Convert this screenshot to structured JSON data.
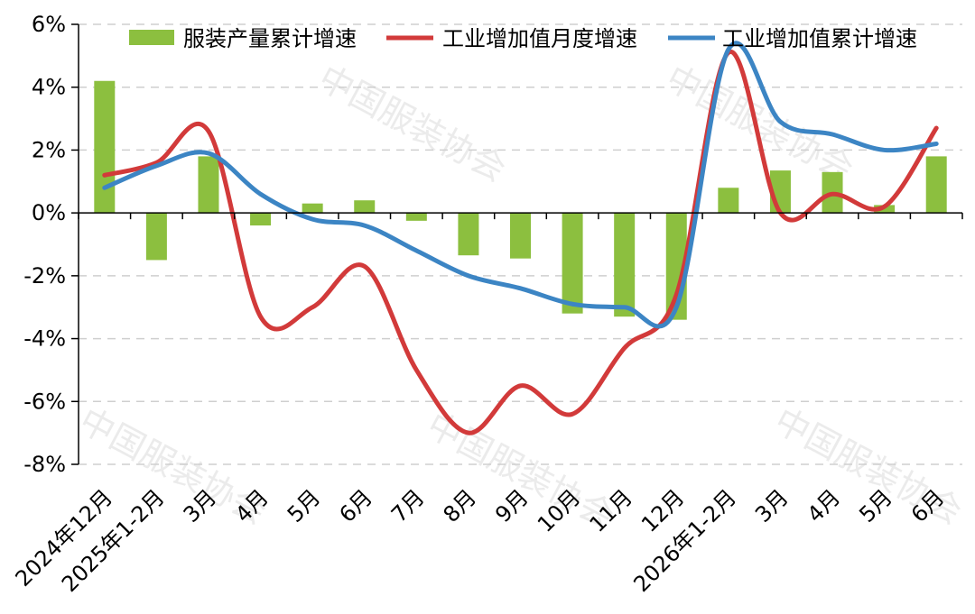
{
  "chart_data": {
    "type": "bar",
    "categories": [
      "2024年12月",
      "2025年1-2月",
      "3月",
      "4月",
      "5月",
      "6月",
      "7月",
      "8月",
      "9月",
      "10月",
      "11月",
      "12月",
      "2026年1-2月",
      "3月",
      "4月",
      "5月",
      "6月"
    ],
    "ylim": [
      -8,
      6
    ],
    "yticks": [
      6,
      4,
      2,
      0,
      -2,
      -4,
      -6,
      -8
    ],
    "ytick_labels": [
      "6%",
      "4%",
      "2%",
      "0%",
      "-2%",
      "-4%",
      "-6%",
      "-8%"
    ],
    "grid": true,
    "legend_position": "top",
    "series": [
      {
        "name": "服装产量累计增速",
        "type": "bar",
        "color": "#8cbf3f",
        "values": [
          4.2,
          -1.5,
          1.8,
          -0.4,
          0.3,
          0.4,
          -0.25,
          -1.35,
          -1.45,
          -3.2,
          -3.3,
          -3.4,
          0.8,
          1.35,
          1.3,
          0.25,
          1.8
        ]
      },
      {
        "name": "工业增加值月度增速",
        "type": "line",
        "color": "#d23a3a",
        "values": [
          1.2,
          1.6,
          2.6,
          -3.3,
          -3.0,
          -1.7,
          -5.0,
          -7.0,
          -5.5,
          -6.4,
          -4.3,
          -2.6,
          5.1,
          0.0,
          0.6,
          0.2,
          2.7
        ]
      },
      {
        "name": "工业增加值累计增速",
        "type": "line",
        "color": "#3c85c4",
        "values": [
          0.8,
          1.5,
          1.9,
          0.6,
          -0.2,
          -0.4,
          -1.2,
          -2.0,
          -2.4,
          -2.9,
          -3.0,
          -3.0,
          5.2,
          2.9,
          2.5,
          2.0,
          2.2
        ]
      }
    ]
  },
  "watermarks": [
    "中国服装协会",
    "中国服装协会",
    "中国服装协会",
    "中国服装协会",
    "中国服装协会"
  ]
}
